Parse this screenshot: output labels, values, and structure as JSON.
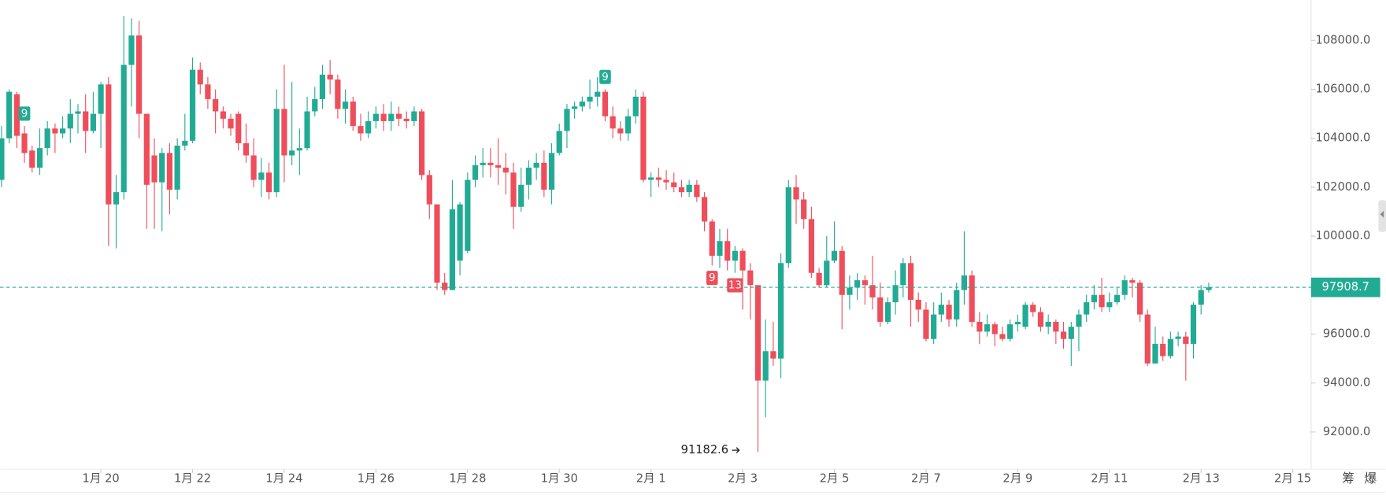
{
  "chart_data": {
    "type": "candlestick",
    "colors": {
      "up": "#22ab94",
      "down": "#ee4e5b"
    },
    "xlim": [
      17.8,
      46.4
    ],
    "ylim": [
      90550,
      109650
    ],
    "xticks": [
      {
        "value": 20,
        "label": "1月 20"
      },
      {
        "value": 22,
        "label": "1月 22"
      },
      {
        "value": 24,
        "label": "1月 24"
      },
      {
        "value": 26,
        "label": "1月 26"
      },
      {
        "value": 28,
        "label": "1月 28"
      },
      {
        "value": 30,
        "label": "1月 30"
      },
      {
        "value": 32,
        "label": "2月 1"
      },
      {
        "value": 34,
        "label": "2月 3"
      },
      {
        "value": 36,
        "label": "2月 5"
      },
      {
        "value": 38,
        "label": "2月 7"
      },
      {
        "value": 40,
        "label": "2月 9"
      },
      {
        "value": 42,
        "label": "2月 11"
      },
      {
        "value": 44,
        "label": "2月 13"
      },
      {
        "value": 46,
        "label": "2月 15"
      }
    ],
    "yticks": [
      {
        "value": 92000,
        "label": "92000.0"
      },
      {
        "value": 94000,
        "label": "94000.0"
      },
      {
        "value": 96000,
        "label": "96000.0"
      },
      {
        "value": 98000,
        "label": "98000.0"
      },
      {
        "value": 100000,
        "label": "100000.0"
      },
      {
        "value": 102000,
        "label": "102000.0"
      },
      {
        "value": 104000,
        "label": "104000.0"
      },
      {
        "value": 106000,
        "label": "106000.0"
      },
      {
        "value": 108000,
        "label": "108000.0"
      }
    ],
    "last_price": {
      "value": 97908.7,
      "label": "97908.7"
    },
    "low_marker": {
      "value": 91182.6,
      "label": "91182.6",
      "x": 34.0
    },
    "annotations": [
      {
        "text": "9",
        "x": 18.333,
        "position": "above",
        "color": "#22ab94"
      },
      {
        "text": "9",
        "x": 31.0,
        "position": "above",
        "color": "#22ab94"
      },
      {
        "text": "9",
        "x": 33.333,
        "position": "below",
        "color": "#ee4e5b"
      },
      {
        "text": "13",
        "x": 33.833,
        "position": "below",
        "color": "#ee4e5b"
      }
    ],
    "toolbar": [
      "筹",
      "爆"
    ],
    "x": [
      17.833,
      18,
      18.167,
      18.333,
      18.5,
      18.667,
      18.833,
      19,
      19.167,
      19.333,
      19.5,
      19.667,
      19.833,
      20,
      20.167,
      20.333,
      20.5,
      20.667,
      20.833,
      21,
      21.167,
      21.333,
      21.5,
      21.667,
      21.833,
      22,
      22.167,
      22.333,
      22.5,
      22.667,
      22.833,
      23,
      23.167,
      23.333,
      23.5,
      23.667,
      23.833,
      24,
      24.167,
      24.333,
      24.5,
      24.667,
      24.833,
      25,
      25.167,
      25.333,
      25.5,
      25.667,
      25.833,
      26,
      26.167,
      26.333,
      26.5,
      26.667,
      26.833,
      27,
      27.167,
      27.333,
      27.5,
      27.667,
      27.833,
      28,
      28.167,
      28.333,
      28.5,
      28.667,
      28.833,
      29,
      29.167,
      29.333,
      29.5,
      29.667,
      29.833,
      30,
      30.167,
      30.333,
      30.5,
      30.667,
      30.833,
      31,
      31.167,
      31.333,
      31.5,
      31.667,
      31.833,
      32,
      32.167,
      32.333,
      32.5,
      32.667,
      32.833,
      33,
      33.167,
      33.333,
      33.5,
      33.667,
      33.833,
      34,
      34.167,
      34.333,
      34.5,
      34.667,
      34.833,
      35,
      35.167,
      35.333,
      35.5,
      35.667,
      35.833,
      36,
      36.167,
      36.333,
      36.5,
      36.667,
      36.833,
      37,
      37.167,
      37.333,
      37.5,
      37.667,
      37.833,
      38,
      38.167,
      38.333,
      38.5,
      38.667,
      38.833,
      39,
      39.167,
      39.333,
      39.5,
      39.667,
      39.833,
      40,
      40.167,
      40.333,
      40.5,
      40.667,
      40.833,
      41,
      41.167,
      41.333,
      41.5,
      41.667,
      41.833,
      42,
      42.167,
      42.333,
      42.5,
      42.667,
      42.833,
      43,
      43.167,
      43.333,
      43.5,
      43.667,
      43.833,
      44,
      44.167
    ],
    "ohlc": [
      [
        102300,
        104500,
        102000,
        104000
      ],
      [
        104000,
        106000,
        103800,
        105900
      ],
      [
        105800,
        105900,
        103600,
        104100
      ],
      [
        104200,
        104500,
        103000,
        103400
      ],
      [
        103500,
        103700,
        102600,
        102800
      ],
      [
        102800,
        104400,
        102500,
        103600
      ],
      [
        103600,
        104700,
        103300,
        104400
      ],
      [
        104400,
        104600,
        103400,
        104200
      ],
      [
        104200,
        104900,
        104000,
        104400
      ],
      [
        104400,
        105600,
        103800,
        105000
      ],
      [
        105000,
        105400,
        104200,
        105100
      ],
      [
        105100,
        105800,
        103400,
        104300
      ],
      [
        104300,
        105900,
        104200,
        105000
      ],
      [
        105000,
        106300,
        103600,
        106200
      ],
      [
        106200,
        106500,
        99600,
        101300
      ],
      [
        101300,
        102500,
        99500,
        101800
      ],
      [
        101800,
        109000,
        101500,
        107000
      ],
      [
        107000,
        108900,
        105300,
        108200
      ],
      [
        108200,
        108800,
        104000,
        105000
      ],
      [
        105000,
        105000,
        100300,
        102100
      ],
      [
        103300,
        104000,
        100300,
        102200
      ],
      [
        102200,
        103600,
        100200,
        103400
      ],
      [
        103400,
        103800,
        100900,
        101900
      ],
      [
        101900,
        104000,
        101500,
        103700
      ],
      [
        103700,
        105000,
        103500,
        103900
      ],
      [
        103900,
        107300,
        103800,
        106800
      ],
      [
        106800,
        107100,
        105800,
        106200
      ],
      [
        106200,
        106500,
        105200,
        105600
      ],
      [
        105600,
        106000,
        104200,
        105100
      ],
      [
        105100,
        105300,
        104400,
        104800
      ],
      [
        104800,
        105000,
        104100,
        104400
      ],
      [
        105000,
        105100,
        103500,
        103800
      ],
      [
        103800,
        104600,
        103000,
        103300
      ],
      [
        103300,
        104000,
        102000,
        102300
      ],
      [
        102300,
        103200,
        101600,
        102600
      ],
      [
        102600,
        103000,
        101500,
        101800
      ],
      [
        101800,
        106000,
        101600,
        105200
      ],
      [
        105200,
        107000,
        102200,
        103300
      ],
      [
        103300,
        106300,
        102900,
        103500
      ],
      [
        103500,
        104400,
        102500,
        103600
      ],
      [
        103600,
        105700,
        103500,
        105100
      ],
      [
        105100,
        106100,
        104900,
        105600
      ],
      [
        105600,
        107000,
        105200,
        106600
      ],
      [
        106600,
        107200,
        105800,
        106400
      ],
      [
        106400,
        106600,
        104800,
        105200
      ],
      [
        105200,
        106000,
        104600,
        105500
      ],
      [
        105500,
        105700,
        104300,
        104500
      ],
      [
        104500,
        105000,
        103900,
        104200
      ],
      [
        104200,
        105100,
        104000,
        104700
      ],
      [
        104700,
        105300,
        104400,
        105000
      ],
      [
        105000,
        105400,
        104300,
        104700
      ],
      [
        104700,
        105500,
        104300,
        105000
      ],
      [
        105000,
        105300,
        104500,
        104800
      ],
      [
        104800,
        105100,
        104400,
        104700
      ],
      [
        104700,
        105300,
        104500,
        105100
      ],
      [
        105100,
        105200,
        102300,
        102500
      ],
      [
        102500,
        102700,
        100700,
        101300
      ],
      [
        101300,
        101300,
        97800,
        98100
      ],
      [
        98100,
        98500,
        97600,
        97800
      ],
      [
        97800,
        102300,
        97800,
        101100
      ],
      [
        99000,
        101400,
        98400,
        101300
      ],
      [
        99400,
        102600,
        99300,
        102300
      ],
      [
        102300,
        103300,
        102000,
        102900
      ],
      [
        102900,
        103600,
        102400,
        103000
      ],
      [
        103000,
        103600,
        102400,
        102900
      ],
      [
        102900,
        104000,
        102100,
        102800
      ],
      [
        102800,
        103400,
        101700,
        102600
      ],
      [
        102600,
        103000,
        100300,
        101200
      ],
      [
        101200,
        102800,
        101000,
        102100
      ],
      [
        102100,
        103100,
        101500,
        102800
      ],
      [
        102800,
        103400,
        102300,
        103000
      ],
      [
        103000,
        103500,
        101600,
        101900
      ],
      [
        101900,
        103800,
        101300,
        103400
      ],
      [
        103400,
        104600,
        103300,
        104300
      ],
      [
        104300,
        105400,
        103600,
        105200
      ],
      [
        105200,
        105500,
        104800,
        105300
      ],
      [
        105300,
        105700,
        105100,
        105500
      ],
      [
        105500,
        106400,
        105200,
        105700
      ],
      [
        105700,
        106500,
        105300,
        105900
      ],
      [
        105900,
        106000,
        104700,
        104900
      ],
      [
        104900,
        105300,
        104000,
        104400
      ],
      [
        104400,
        104700,
        103900,
        104200
      ],
      [
        104200,
        105200,
        103900,
        104900
      ],
      [
        104900,
        106000,
        104600,
        105700
      ],
      [
        105700,
        105900,
        102200,
        102300
      ],
      [
        102300,
        102600,
        101600,
        102400
      ],
      [
        102400,
        102800,
        102000,
        102300
      ],
      [
        102300,
        102700,
        101900,
        102200
      ],
      [
        102200,
        102600,
        101800,
        102000
      ],
      [
        102000,
        102300,
        101600,
        101800
      ],
      [
        101800,
        102300,
        101600,
        102100
      ],
      [
        102100,
        102300,
        101400,
        101600
      ],
      [
        101600,
        101800,
        100200,
        100600
      ],
      [
        100600,
        100700,
        98800,
        99200
      ],
      [
        99200,
        100300,
        98700,
        99800
      ],
      [
        99800,
        100300,
        98600,
        99000
      ],
      [
        99000,
        99600,
        98500,
        99400
      ],
      [
        99400,
        99500,
        97000,
        98600
      ],
      [
        98600,
        98900,
        96600,
        98000
      ],
      [
        98000,
        98000,
        91182.6,
        94100
      ],
      [
        94100,
        96600,
        92600,
        95300
      ],
      [
        95300,
        96500,
        94700,
        95000
      ],
      [
        95000,
        99300,
        94200,
        98900
      ],
      [
        98900,
        102300,
        98700,
        102000
      ],
      [
        102000,
        102500,
        100500,
        101500
      ],
      [
        101500,
        101800,
        100300,
        100700
      ],
      [
        100700,
        101200,
        98300,
        98500
      ],
      [
        98500,
        98700,
        97900,
        98000
      ],
      [
        98000,
        100000,
        97900,
        99000
      ],
      [
        99000,
        100600,
        98900,
        99400
      ],
      [
        99400,
        99600,
        96200,
        97600
      ],
      [
        97600,
        98400,
        97000,
        97900
      ],
      [
        97900,
        98500,
        97400,
        98200
      ],
      [
        98200,
        98400,
        97200,
        98000
      ],
      [
        98000,
        99200,
        97000,
        97500
      ],
      [
        97500,
        98100,
        96300,
        96500
      ],
      [
        96500,
        97500,
        96400,
        97300
      ],
      [
        97300,
        98600,
        96800,
        98000
      ],
      [
        98000,
        99100,
        97500,
        98900
      ],
      [
        98900,
        99200,
        96300,
        97400
      ],
      [
        97400,
        97700,
        96500,
        97000
      ],
      [
        97000,
        97300,
        95700,
        95800
      ],
      [
        95800,
        97300,
        95600,
        96800
      ],
      [
        96800,
        97700,
        96500,
        97200
      ],
      [
        97200,
        97400,
        96300,
        96600
      ],
      [
        96600,
        98100,
        96300,
        97800
      ],
      [
        97800,
        100200,
        97200,
        98400
      ],
      [
        98400,
        98600,
        96300,
        96500
      ],
      [
        96500,
        96900,
        95600,
        96100
      ],
      [
        96100,
        96800,
        95900,
        96400
      ],
      [
        96400,
        96500,
        95500,
        96000
      ],
      [
        96000,
        96300,
        95700,
        95800
      ],
      [
        95800,
        96600,
        95700,
        96400
      ],
      [
        96400,
        96800,
        96100,
        96500
      ],
      [
        96300,
        97300,
        96200,
        97200
      ],
      [
        97200,
        97300,
        96700,
        96900
      ],
      [
        96900,
        97100,
        96100,
        96300
      ],
      [
        96300,
        96800,
        96000,
        96500
      ],
      [
        96500,
        96600,
        95600,
        96100
      ],
      [
        96100,
        96500,
        95400,
        95800
      ],
      [
        95800,
        96500,
        94700,
        96300
      ],
      [
        96300,
        97000,
        95300,
        96800
      ],
      [
        96800,
        97600,
        96500,
        97300
      ],
      [
        97300,
        98000,
        97000,
        97600
      ],
      [
        97600,
        98300,
        96900,
        97100
      ],
      [
        97100,
        97700,
        96900,
        97300
      ],
      [
        97300,
        97900,
        97200,
        97600
      ],
      [
        97600,
        98400,
        97400,
        98200
      ],
      [
        98200,
        98300,
        97500,
        98100
      ],
      [
        98100,
        98200,
        96500,
        96800
      ],
      [
        96800,
        97000,
        94700,
        94800
      ],
      [
        94800,
        96300,
        94800,
        95600
      ],
      [
        95600,
        95900,
        94900,
        95100
      ],
      [
        95100,
        96100,
        95000,
        95800
      ],
      [
        95800,
        96100,
        95500,
        95900
      ],
      [
        95900,
        96100,
        94100,
        95600
      ],
      [
        95600,
        97300,
        95000,
        97200
      ],
      [
        97200,
        98000,
        96800,
        97800
      ],
      [
        97800,
        98100,
        97700,
        97908.7
      ]
    ]
  }
}
